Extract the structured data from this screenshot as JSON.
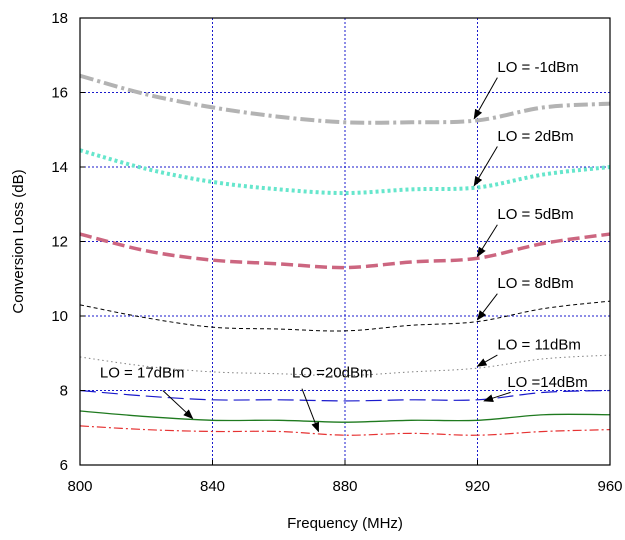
{
  "chart_data": {
    "type": "line",
    "title": "",
    "xlabel": "Frequency (MHz)",
    "ylabel": "Conversion Loss (dB)",
    "xlim": [
      800,
      960
    ],
    "ylim": [
      6,
      18
    ],
    "x_ticks": [
      "800",
      "840",
      "880",
      "920",
      "960"
    ],
    "y_ticks": [
      "6",
      "8",
      "10",
      "12",
      "14",
      "16",
      "18"
    ],
    "grid": true,
    "colors": {
      "axis": "#000000",
      "grid": "#1a1acc"
    },
    "series": [
      {
        "name": "LO = -1dBm",
        "color": "#b3b3b3",
        "style": "dashdot-thick",
        "x": [
          800,
          820,
          840,
          860,
          880,
          900,
          920,
          940,
          960
        ],
        "y": [
          16.45,
          15.95,
          15.6,
          15.35,
          15.2,
          15.2,
          15.25,
          15.6,
          15.7
        ]
      },
      {
        "name": "LO = 2dBm",
        "color": "#66e6cc",
        "style": "dotted-thick",
        "x": [
          800,
          820,
          840,
          860,
          880,
          900,
          920,
          940,
          960
        ],
        "y": [
          14.45,
          13.95,
          13.6,
          13.4,
          13.3,
          13.4,
          13.45,
          13.8,
          14.0
        ]
      },
      {
        "name": "LO = 5dBm",
        "color": "#cc6680",
        "style": "dashed-thick",
        "x": [
          800,
          820,
          840,
          860,
          880,
          900,
          920,
          940,
          960
        ],
        "y": [
          12.2,
          11.75,
          11.5,
          11.4,
          11.3,
          11.45,
          11.55,
          11.95,
          12.2
        ]
      },
      {
        "name": "LO = 8dBm",
        "color": "#000000",
        "style": "dashed-thin",
        "x": [
          800,
          820,
          840,
          860,
          880,
          900,
          920,
          940,
          960
        ],
        "y": [
          10.3,
          9.95,
          9.7,
          9.65,
          9.6,
          9.75,
          9.85,
          10.2,
          10.4
        ]
      },
      {
        "name": "LO = 11dBm",
        "color": "#808080",
        "style": "dotted-thin",
        "x": [
          800,
          820,
          840,
          860,
          880,
          900,
          920,
          940,
          960
        ],
        "y": [
          8.9,
          8.65,
          8.5,
          8.45,
          8.4,
          8.5,
          8.6,
          8.85,
          8.95
        ]
      },
      {
        "name": "LO =14dBm",
        "color": "#1a1acc",
        "style": "longdash",
        "x": [
          800,
          820,
          840,
          860,
          880,
          900,
          920,
          940,
          960
        ],
        "y": [
          8.0,
          7.85,
          7.75,
          7.75,
          7.72,
          7.75,
          7.75,
          7.95,
          8.0
        ]
      },
      {
        "name": "LO = 17dBm",
        "color": "#1f7a1f",
        "style": "solid",
        "x": [
          800,
          820,
          840,
          860,
          880,
          900,
          920,
          940,
          960
        ],
        "y": [
          7.45,
          7.3,
          7.2,
          7.2,
          7.15,
          7.2,
          7.2,
          7.35,
          7.35
        ]
      },
      {
        "name": "LO =20dBm",
        "color": "#e63333",
        "style": "dashdot-thin",
        "x": [
          800,
          820,
          840,
          860,
          880,
          900,
          920,
          940,
          960
        ],
        "y": [
          7.05,
          6.95,
          6.9,
          6.9,
          6.8,
          6.85,
          6.8,
          6.9,
          6.95
        ]
      }
    ],
    "annotations": [
      {
        "text": "LO = -1dBm",
        "label_xy": [
          926,
          16.55
        ],
        "arrow_from": [
          926,
          16.4
        ],
        "arrow_to": [
          919,
          15.3
        ]
      },
      {
        "text": "LO = 2dBm",
        "label_xy": [
          926,
          14.7
        ],
        "arrow_from": [
          926,
          14.55
        ],
        "arrow_to": [
          919,
          13.5
        ]
      },
      {
        "text": "LO = 5dBm",
        "label_xy": [
          926,
          12.6
        ],
        "arrow_from": [
          926,
          12.45
        ],
        "arrow_to": [
          920,
          11.6
        ]
      },
      {
        "text": "LO = 8dBm",
        "label_xy": [
          926,
          10.75
        ],
        "arrow_from": [
          926,
          10.6
        ],
        "arrow_to": [
          920,
          9.9
        ]
      },
      {
        "text": "LO = 11dBm",
        "label_xy": [
          926,
          9.1
        ],
        "arrow_from": [
          926,
          8.95
        ],
        "arrow_to": [
          920,
          8.65
        ]
      },
      {
        "text": "LO =14dBm",
        "label_xy": [
          929,
          8.1
        ],
        "arrow_from": [
          930,
          7.95
        ],
        "arrow_to": [
          922,
          7.72
        ]
      },
      {
        "text": "LO = 17dBm",
        "label_xy": [
          806,
          8.35
        ],
        "arrow_from": [
          825,
          8.0
        ],
        "arrow_to": [
          834,
          7.25
        ]
      },
      {
        "text": "LO =20dBm",
        "label_xy": [
          864,
          8.35
        ],
        "arrow_from": [
          867,
          8.05
        ],
        "arrow_to": [
          872,
          6.9
        ]
      }
    ]
  }
}
